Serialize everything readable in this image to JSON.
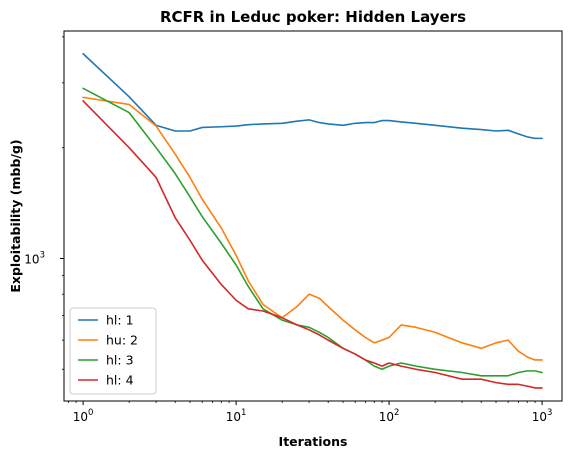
{
  "chart_data": {
    "type": "line",
    "title": "RCFR in Leduc poker: Hidden Layers",
    "xlabel": "Iterations",
    "ylabel": "Exploitability (mbb/g)",
    "x_scale": "log",
    "y_scale": "log",
    "xlim": [
      0.75,
      1350
    ],
    "ylim": [
      410,
      4150
    ],
    "x_ticks": [
      {
        "value": 1,
        "base": "10",
        "exp": "0"
      },
      {
        "value": 10,
        "base": "10",
        "exp": "1"
      },
      {
        "value": 100,
        "base": "10",
        "exp": "2"
      },
      {
        "value": 1000,
        "base": "10",
        "exp": "3"
      }
    ],
    "y_ticks": [
      {
        "value": 1000,
        "base": "10",
        "exp": "3"
      }
    ],
    "grid": false,
    "legend_position": "lower-left",
    "x": [
      1,
      2,
      3,
      4,
      5,
      6,
      8,
      10,
      12,
      15,
      20,
      25,
      30,
      35,
      40,
      50,
      60,
      70,
      80,
      90,
      100,
      120,
      150,
      200,
      300,
      400,
      500,
      600,
      700,
      800,
      900,
      1000
    ],
    "series": [
      {
        "name": "hl: 1",
        "color": "#1f77b4",
        "values": [
          3600,
          2750,
          2300,
          2220,
          2220,
          2270,
          2280,
          2290,
          2310,
          2320,
          2330,
          2360,
          2380,
          2340,
          2320,
          2300,
          2330,
          2340,
          2340,
          2370,
          2370,
          2350,
          2330,
          2300,
          2260,
          2240,
          2220,
          2230,
          2180,
          2140,
          2120,
          2120
        ]
      },
      {
        "name": "hu: 2",
        "color": "#ff7f0e",
        "values": [
          2740,
          2620,
          2290,
          1920,
          1660,
          1450,
          1210,
          1020,
          870,
          750,
          690,
          740,
          800,
          780,
          740,
          680,
          640,
          610,
          590,
          600,
          610,
          660,
          650,
          630,
          590,
          570,
          590,
          600,
          560,
          540,
          530,
          530
        ]
      },
      {
        "name": "hl: 3",
        "color": "#2ca02c",
        "values": [
          2900,
          2490,
          2000,
          1700,
          1470,
          1300,
          1100,
          960,
          840,
          730,
          680,
          660,
          650,
          630,
          610,
          570,
          550,
          530,
          510,
          500,
          510,
          520,
          510,
          500,
          490,
          480,
          480,
          480,
          490,
          495,
          495,
          490
        ]
      },
      {
        "name": "hl: 4",
        "color": "#d62728",
        "values": [
          2680,
          2000,
          1660,
          1290,
          1120,
          990,
          850,
          770,
          730,
          720,
          690,
          660,
          640,
          620,
          600,
          570,
          550,
          530,
          520,
          510,
          520,
          510,
          500,
          490,
          470,
          470,
          460,
          455,
          455,
          450,
          445,
          445
        ]
      }
    ]
  }
}
